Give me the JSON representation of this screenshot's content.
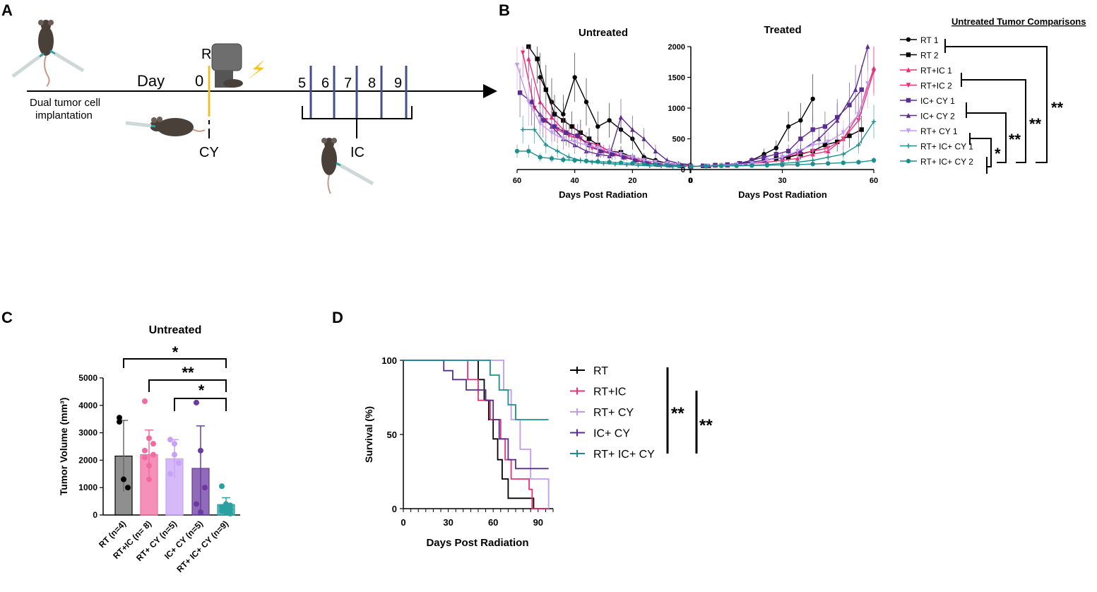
{
  "colors": {
    "rt": "#000000",
    "rt_ic": "#e8317a",
    "rt_cy": "#c39af0",
    "ic_cy": "#5a2c8f",
    "rt_ic_cy": "#1a9090",
    "radiation_bar": "#e8c030",
    "ic_dose_bar": "#44508a",
    "bolt": "#f5c518",
    "mouse": "#4a403a",
    "syringe": "#cfd8d8"
  },
  "panelA": {
    "letter": "A",
    "day_label": "Day",
    "day0": "0",
    "rt_label": "RT",
    "cy_label": "CY",
    "ic_label": "IC",
    "ic_days": [
      "5",
      "6",
      "7",
      "8",
      "9"
    ],
    "implant_line1": "Dual tumor cell",
    "implant_line2": "implantation",
    "icons": [
      "mouse-icon",
      "syringe-icon",
      "irradiator-icon",
      "lightning-icon"
    ]
  },
  "panelB": {
    "letter": "B",
    "legend_title": "Untreated Tumor Comparisons",
    "legend": [
      "RT 1",
      "RT 2",
      "RT+IC 1",
      "RT+IC 2",
      "IC+ CY 1",
      "IC+ CY 2",
      "RT+ CY 1",
      "RT+ IC+ CY 1",
      "RT+ IC+ CY 2"
    ],
    "sig": [
      "**",
      "**",
      "**",
      "*"
    ]
  },
  "panelC": {
    "letter": "C",
    "sig": [
      "*",
      "**",
      "*"
    ]
  },
  "panelD": {
    "letter": "D",
    "sig": [
      "**",
      "**"
    ]
  },
  "chart_data": [
    {
      "id": "B-untreated",
      "type": "line",
      "title": "Untreated",
      "xlabel": "Days Post Radiation",
      "ylabel": "",
      "x_reversed": true,
      "xlim": [
        60,
        0
      ],
      "ylim": [
        0,
        2000
      ],
      "xticks": [
        60,
        40,
        20,
        0
      ],
      "series": [
        {
          "name": "RT 1",
          "color": "#000000",
          "marker": "circle",
          "x": [
            52,
            48,
            44,
            40,
            36,
            32,
            28,
            24,
            20,
            16,
            12,
            8,
            4,
            0
          ],
          "y": [
            1500,
            1100,
            900,
            1500,
            1100,
            700,
            800,
            650,
            500,
            200,
            150,
            100,
            80,
            60
          ]
        },
        {
          "name": "RT 2",
          "color": "#000000",
          "marker": "square",
          "x": [
            56,
            53,
            50,
            47,
            44,
            41,
            38,
            35,
            32,
            28,
            24,
            20,
            16,
            12,
            8,
            4,
            0
          ],
          "y": [
            2000,
            1800,
            1300,
            900,
            800,
            700,
            600,
            500,
            400,
            300,
            280,
            200,
            150,
            120,
            100,
            80,
            60
          ]
        },
        {
          "name": "RT+IC 1",
          "color": "#e8317a",
          "marker": "triangle",
          "x": [
            56,
            52,
            48,
            44,
            40,
            36,
            32,
            28,
            24,
            20,
            16,
            12,
            8,
            4,
            0
          ],
          "y": [
            1800,
            1100,
            850,
            650,
            550,
            450,
            400,
            300,
            250,
            200,
            150,
            120,
            100,
            80,
            60
          ]
        },
        {
          "name": "RT+IC 2",
          "color": "#e8317a",
          "marker": "tri-down",
          "x": [
            58,
            54,
            50,
            46,
            42,
            38,
            34,
            30,
            26,
            22,
            18,
            14,
            10,
            6,
            2
          ],
          "y": [
            1900,
            1000,
            800,
            650,
            550,
            500,
            350,
            300,
            250,
            200,
            150,
            100,
            80,
            70,
            60
          ]
        },
        {
          "name": "IC+ CY 1",
          "color": "#5a2c8f",
          "marker": "square",
          "x": [
            59,
            55,
            51,
            47,
            43,
            39,
            35,
            31,
            27,
            23,
            19,
            15,
            11,
            7,
            3
          ],
          "y": [
            1250,
            1100,
            800,
            700,
            600,
            550,
            400,
            300,
            250,
            200,
            150,
            100,
            80,
            70,
            60
          ]
        },
        {
          "name": "IC+ CY 2",
          "color": "#5a2c8f",
          "marker": "triangle",
          "x": [
            52,
            48,
            44,
            40,
            36,
            32,
            28,
            24,
            20,
            16,
            12,
            8,
            4,
            0
          ],
          "y": [
            900,
            700,
            500,
            400,
            300,
            250,
            220,
            850,
            650,
            500,
            300,
            150,
            100,
            80
          ]
        },
        {
          "name": "RT+ CY 1",
          "color": "#c39af0",
          "marker": "tri-down",
          "x": [
            60,
            56,
            52,
            48,
            44,
            40,
            36,
            32,
            28,
            24,
            20,
            16,
            12,
            8,
            4
          ],
          "y": [
            1700,
            1100,
            750,
            600,
            500,
            450,
            400,
            350,
            300,
            250,
            200,
            150,
            120,
            100,
            80
          ]
        },
        {
          "name": "RT+ IC+ CY 1",
          "color": "#1a9090",
          "marker": "plus",
          "x": [
            58,
            54,
            50,
            46,
            42,
            38,
            34,
            30,
            26,
            22,
            18,
            14,
            10,
            6,
            2
          ],
          "y": [
            650,
            650,
            400,
            300,
            200,
            150,
            120,
            100,
            90,
            80,
            70,
            60,
            60,
            50,
            50
          ]
        },
        {
          "name": "RT+ IC+ CY 2",
          "color": "#1a9090",
          "marker": "circle",
          "x": [
            60,
            56,
            52,
            48,
            44,
            40,
            36,
            32,
            28,
            24,
            20,
            16,
            12,
            8,
            4
          ],
          "y": [
            300,
            300,
            200,
            180,
            160,
            150,
            140,
            130,
            120,
            110,
            100,
            90,
            80,
            70,
            60
          ]
        }
      ]
    },
    {
      "id": "B-treated",
      "type": "line",
      "title": "Treated",
      "xlabel": "Days Post Radiation",
      "ylabel": "",
      "xlim": [
        0,
        60
      ],
      "ylim": [
        0,
        2000
      ],
      "xticks": [
        0,
        30,
        60
      ],
      "yticks": [
        0,
        500,
        1000,
        1500,
        2000
      ],
      "series": [
        {
          "name": "RT 1",
          "color": "#000000",
          "marker": "circle",
          "x": [
            0,
            4,
            8,
            12,
            16,
            20,
            24,
            28,
            32,
            36,
            40
          ],
          "y": [
            50,
            60,
            70,
            80,
            100,
            150,
            250,
            350,
            700,
            800,
            1150
          ]
        },
        {
          "name": "RT 2",
          "color": "#000000",
          "marker": "square",
          "x": [
            0,
            4,
            8,
            12,
            16,
            20,
            24,
            28,
            32,
            36,
            40,
            44,
            48,
            52,
            56
          ],
          "y": [
            50,
            60,
            70,
            80,
            100,
            120,
            150,
            180,
            200,
            250,
            300,
            400,
            450,
            550,
            650
          ]
        },
        {
          "name": "RT+IC 1",
          "color": "#e8317a",
          "marker": "triangle",
          "x": [
            0,
            5,
            10,
            15,
            20,
            25,
            30,
            35,
            40,
            45,
            50,
            55,
            60
          ],
          "y": [
            50,
            60,
            70,
            80,
            100,
            120,
            150,
            180,
            250,
            300,
            500,
            900,
            1650
          ]
        },
        {
          "name": "RT+IC 2",
          "color": "#e8317a",
          "marker": "tri-down",
          "x": [
            0,
            5,
            10,
            15,
            20,
            25,
            30,
            35,
            40,
            45,
            50,
            55,
            60
          ],
          "y": [
            50,
            60,
            70,
            80,
            100,
            150,
            200,
            250,
            300,
            350,
            500,
            800,
            1600
          ]
        },
        {
          "name": "IC+ CY 1",
          "color": "#5a2c8f",
          "marker": "square",
          "x": [
            0,
            4,
            8,
            12,
            16,
            20,
            24,
            28,
            32,
            36,
            40,
            44,
            48,
            52,
            56
          ],
          "y": [
            50,
            60,
            70,
            80,
            100,
            150,
            200,
            250,
            300,
            500,
            650,
            700,
            850,
            1050,
            1300
          ]
        },
        {
          "name": "IC+ CY 2",
          "color": "#5a2c8f",
          "marker": "triangle",
          "x": [
            0,
            6,
            12,
            18,
            24,
            30,
            36,
            42,
            48,
            54,
            58
          ],
          "y": [
            50,
            60,
            70,
            100,
            150,
            200,
            300,
            500,
            800,
            1300,
            2000
          ]
        },
        {
          "name": "RT+ CY 1",
          "color": "#c39af0",
          "marker": "tri-down",
          "x": [
            0,
            5,
            10,
            15,
            20,
            25,
            30,
            35,
            40,
            45,
            50,
            55,
            58
          ],
          "y": [
            50,
            60,
            70,
            80,
            100,
            150,
            200,
            300,
            400,
            450,
            600,
            900,
            1400
          ]
        },
        {
          "name": "RT+ IC+ CY 1",
          "color": "#1a9090",
          "marker": "plus",
          "x": [
            0,
            5,
            10,
            15,
            20,
            25,
            30,
            35,
            40,
            45,
            50,
            55,
            60
          ],
          "y": [
            50,
            55,
            60,
            65,
            70,
            80,
            100,
            120,
            150,
            200,
            250,
            400,
            780
          ]
        },
        {
          "name": "RT+ IC+ CY 2",
          "color": "#1a9090",
          "marker": "circle",
          "x": [
            0,
            5,
            10,
            15,
            20,
            25,
            30,
            35,
            40,
            45,
            50,
            55,
            60
          ],
          "y": [
            50,
            55,
            60,
            60,
            65,
            70,
            75,
            80,
            90,
            100,
            110,
            120,
            150
          ]
        }
      ]
    },
    {
      "id": "C",
      "type": "bar",
      "title": "Untreated",
      "xlabel": "",
      "ylabel": "Tumor Volume (mm³)",
      "ylim": [
        0,
        5000
      ],
      "yticks": [
        0,
        1000,
        2000,
        3000,
        4000,
        5000
      ],
      "categories": [
        "RT (n=4)",
        "RT+IC (n= 8)",
        "RT+ CY (n=5)",
        "IC+ CY (n=5)",
        "RT+ IC+ CY (n=9)"
      ],
      "values": [
        2150,
        2200,
        2050,
        1700,
        380
      ],
      "errors": [
        1300,
        900,
        700,
        1550,
        250
      ],
      "colors": [
        "#6a6a6a",
        "#f26ba0",
        "#c8a2f5",
        "#6a3aa0",
        "#2aa0a0"
      ],
      "points": [
        [
          3550,
          1300,
          1000,
          3400
        ],
        [
          4150,
          2800,
          2200,
          2100,
          1800,
          2600,
          2350,
          1300
        ],
        [
          2750,
          2200,
          1900,
          1500,
          2600
        ],
        [
          4100,
          2350,
          1000,
          400,
          100
        ],
        [
          1050,
          400,
          350,
          300,
          250,
          200,
          150,
          100,
          50
        ]
      ]
    },
    {
      "id": "D",
      "type": "line",
      "subtype": "survival-step",
      "xlabel": "Days Post Radiation",
      "ylabel": "Survival (%)",
      "xlim": [
        0,
        100
      ],
      "ylim": [
        0,
        100
      ],
      "xticks": [
        0,
        30,
        60,
        90
      ],
      "yticks": [
        0,
        50,
        100
      ],
      "series": [
        {
          "name": "RT",
          "color": "#000000",
          "x": [
            0,
            44,
            50,
            54,
            57,
            60,
            63,
            66,
            70,
            87
          ],
          "y": [
            100,
            100,
            87,
            73,
            60,
            47,
            33,
            20,
            7,
            0
          ]
        },
        {
          "name": "RT+IC",
          "color": "#e8317a",
          "x": [
            0,
            37,
            43,
            50,
            58,
            65,
            68,
            72,
            84,
            86
          ],
          "y": [
            100,
            100,
            87,
            73,
            60,
            47,
            33,
            20,
            13,
            0
          ]
        },
        {
          "name": "RT+ CY",
          "color": "#c39af0",
          "x": [
            0,
            60,
            67,
            72,
            78,
            85,
            97
          ],
          "y": [
            100,
            100,
            80,
            60,
            40,
            20,
            0
          ]
        },
        {
          "name": "IC+ CY",
          "color": "#5a2c8f",
          "x": [
            0,
            22,
            27,
            33,
            42,
            55,
            60,
            64,
            70,
            75,
            97
          ],
          "y": [
            100,
            100,
            93,
            87,
            80,
            73,
            60,
            47,
            33,
            27,
            27
          ]
        },
        {
          "name": "RT+ IC+ CY",
          "color": "#1a9090",
          "x": [
            0,
            42,
            58,
            64,
            70,
            75,
            80,
            97
          ],
          "y": [
            100,
            100,
            90,
            80,
            70,
            60,
            60,
            60
          ]
        }
      ]
    }
  ]
}
